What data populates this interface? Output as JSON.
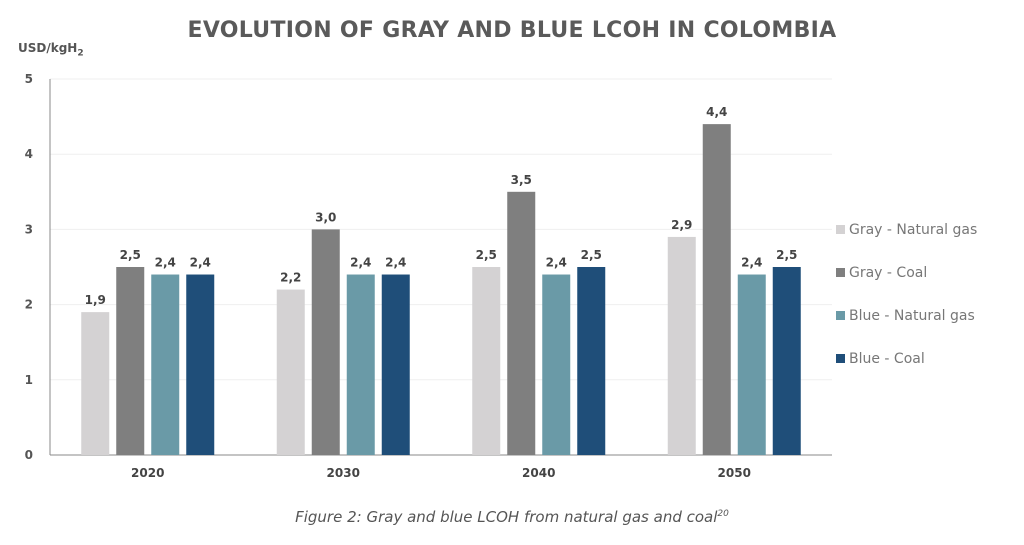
{
  "chart_data": {
    "type": "bar",
    "title": "EVOLUTION OF GRAY AND BLUE LCOH IN COLOMBIA",
    "ylabel": "USD/kgH",
    "ylabel_subscript": "2",
    "xlabel": "",
    "ylim": [
      0,
      5
    ],
    "yticks": [
      "0",
      "1",
      "2",
      "3",
      "4",
      "5"
    ],
    "grid": true,
    "legend_position": "right",
    "categories": [
      "2020",
      "2030",
      "2040",
      "2050"
    ],
    "series": [
      {
        "name": "Gray - Natural gas",
        "color": "#d4d2d3",
        "values": [
          1.9,
          2.2,
          2.5,
          2.9
        ],
        "labels": [
          "1,9",
          "2,2",
          "2,5",
          "2,9"
        ]
      },
      {
        "name": "Gray - Coal",
        "color": "#7f7f7f",
        "values": [
          2.5,
          3.0,
          3.5,
          4.4
        ],
        "labels": [
          "2,5",
          "3,0",
          "3,5",
          "4,4"
        ]
      },
      {
        "name": "Blue - Natural gas",
        "color": "#6a9aa7",
        "values": [
          2.4,
          2.4,
          2.4,
          2.4
        ],
        "labels": [
          "2,4",
          "2,4",
          "2,4",
          "2,4"
        ]
      },
      {
        "name": "Blue - Coal",
        "color": "#1f4e79",
        "values": [
          2.4,
          2.4,
          2.5,
          2.5
        ],
        "labels": [
          "2,4",
          "2,4",
          "2,5",
          "2,5"
        ]
      }
    ]
  },
  "caption": {
    "text": "Figure 2: Gray and blue LCOH from natural gas and coal",
    "superscript": "20"
  }
}
